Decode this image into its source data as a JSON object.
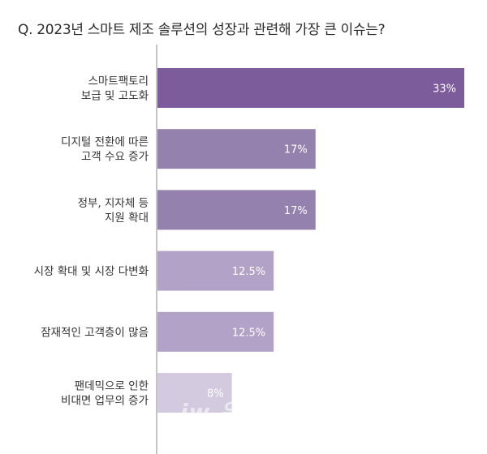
{
  "title": "Q. 2023년 스마트 제조 솔루션의 성장과 관련해 가장 큰 이슈는?",
  "watermark": "iw 위더",
  "colors": [
    "#7d5c9c",
    "#9581ae",
    "#9581ae",
    "#b2a2c8",
    "#b2a2c8",
    "#d3cadf"
  ],
  "chart_data": {
    "type": "bar",
    "orientation": "horizontal",
    "title": "Q. 2023년 스마트 제조 솔루션의 성장과 관련해 가장 큰 이슈는?",
    "categories": [
      [
        "스마트팩토리",
        "보급 및 고도화"
      ],
      [
        "디지털 전환에 따른",
        "고객 수요 증가"
      ],
      [
        "정부, 지자체 등",
        "지원 확대"
      ],
      [
        "시장 확대 및 시장 다변화"
      ],
      [
        "잠재적인 고객층이 많음"
      ],
      [
        "팬데믹으로 인한",
        "비대면 업무의 증가"
      ]
    ],
    "values": [
      33,
      17,
      17,
      12.5,
      12.5,
      8
    ],
    "value_labels": [
      "33%",
      "17%",
      "17%",
      "12.5%",
      "12.5%",
      "8%"
    ],
    "xlim": [
      0,
      33
    ],
    "grid": false,
    "legend": "none"
  }
}
